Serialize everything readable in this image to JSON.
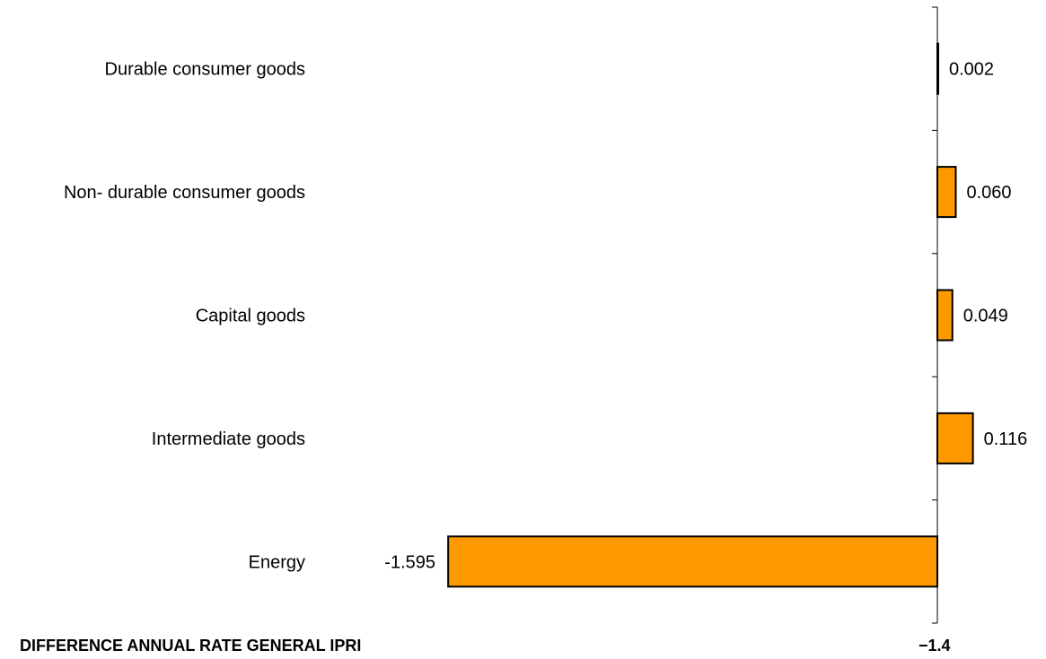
{
  "chart_data": {
    "type": "bar",
    "orientation": "horizontal",
    "categories": [
      "Durable consumer goods",
      "Non- durable consumer goods",
      "Capital goods",
      "Intermediate goods",
      "Energy"
    ],
    "values": [
      0.002,
      0.06,
      0.049,
      0.116,
      -1.595
    ],
    "value_labels": [
      "0.002",
      "0.060",
      "0.049",
      "0.116",
      "-1.595"
    ],
    "xlim": [
      -1.6,
      0.12
    ],
    "bar_color": "#ff9900",
    "bar_edge_color": "#000000",
    "grid": false,
    "legend": "none"
  },
  "footer": {
    "label": "DIFFERENCE ANNUAL RATE GENERAL IPRI",
    "value": "−1.4"
  }
}
